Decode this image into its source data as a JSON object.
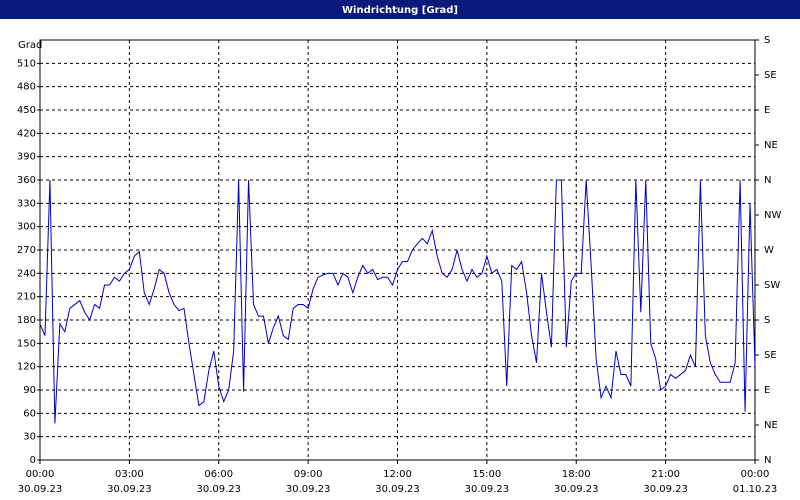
{
  "chart_data": {
    "type": "line",
    "title": "Windrichtung [Grad]",
    "y_label": "Grad",
    "x": [
      0,
      10,
      20,
      30,
      40,
      50,
      60,
      70,
      80,
      90,
      100,
      110,
      120,
      130,
      140,
      150,
      160,
      170,
      180,
      190,
      200,
      210,
      220,
      230,
      240,
      250,
      260,
      270,
      280,
      290,
      300,
      310,
      320,
      330,
      340,
      350,
      360,
      370,
      380,
      390,
      400,
      410,
      420,
      430,
      440,
      450,
      460,
      470,
      480,
      490,
      500,
      510,
      520,
      530,
      540,
      550,
      560,
      570,
      580,
      590,
      600,
      610,
      620,
      630,
      640,
      650,
      660,
      670,
      680,
      690,
      700,
      710,
      720,
      730,
      740,
      750,
      760,
      770,
      780,
      790,
      800,
      810,
      820,
      830,
      840,
      850,
      860,
      870,
      880,
      890,
      900,
      910,
      920,
      930,
      940,
      950,
      960,
      970,
      980,
      990,
      1000,
      1010,
      1020,
      1030,
      1040,
      1050,
      1060,
      1070,
      1080,
      1090,
      1100,
      1110,
      1120,
      1130,
      1140,
      1150,
      1160,
      1170,
      1180,
      1190,
      1200,
      1210,
      1220,
      1230,
      1240,
      1250,
      1260,
      1270,
      1280,
      1290,
      1300,
      1310,
      1320,
      1330,
      1340,
      1350,
      1360,
      1370,
      1380,
      1390,
      1400,
      1410,
      1420,
      1430,
      1440
    ],
    "series": [
      {
        "color": "#0000c8",
        "values": [
          175,
          160,
          360,
          47,
          175,
          165,
          195,
          200,
          205,
          190,
          180,
          200,
          195,
          225,
          225,
          235,
          230,
          240,
          245,
          262,
          268,
          215,
          200,
          220,
          245,
          240,
          215,
          200,
          192,
          195,
          150,
          110,
          70,
          75,
          115,
          140,
          95,
          75,
          90,
          140,
          360,
          88,
          360,
          200,
          185,
          185,
          150,
          170,
          185,
          160,
          155,
          195,
          200,
          200,
          195,
          220,
          235,
          238,
          240,
          240,
          225,
          240,
          235,
          215,
          235,
          250,
          240,
          245,
          232,
          235,
          235,
          225,
          245,
          255,
          255,
          270,
          278,
          285,
          278,
          295,
          262,
          240,
          235,
          245,
          270,
          245,
          230,
          245,
          235,
          240,
          262,
          240,
          245,
          230,
          95,
          250,
          245,
          255,
          215,
          160,
          125,
          240,
          190,
          145,
          360,
          360,
          145,
          230,
          240,
          240,
          360,
          250,
          130,
          80,
          95,
          80,
          140,
          110,
          110,
          95,
          360,
          190,
          360,
          150,
          130,
          90,
          95,
          110,
          105,
          110,
          115,
          135,
          120,
          360,
          160,
          125,
          110,
          100,
          100,
          100,
          125,
          360,
          62,
          330,
          120
        ]
      }
    ],
    "xlim": [
      0,
      1440
    ],
    "xticks": [
      {
        "value": 0,
        "label": "00:00"
      },
      {
        "value": 180,
        "label": "03:00"
      },
      {
        "value": 360,
        "label": "06:00"
      },
      {
        "value": 540,
        "label": "09:00"
      },
      {
        "value": 720,
        "label": "12:00"
      },
      {
        "value": 900,
        "label": "15:00"
      },
      {
        "value": 1080,
        "label": "18:00"
      },
      {
        "value": 1260,
        "label": "21:00"
      },
      {
        "value": 1440,
        "label": "00:00"
      }
    ],
    "xtick_dates": [
      "30.09.23",
      "30.09.23",
      "30.09.23",
      "30.09.23",
      "30.09.23",
      "30.09.23",
      "30.09.23",
      "30.09.23",
      "01.10.23"
    ],
    "ylim": [
      0,
      540
    ],
    "yticks": [
      0,
      30,
      60,
      90,
      120,
      150,
      180,
      210,
      240,
      270,
      300,
      330,
      360,
      390,
      420,
      450,
      480,
      510
    ],
    "y2lim": [
      0,
      540
    ],
    "y2ticks": [
      {
        "value": 0,
        "label": "N"
      },
      {
        "value": 45,
        "label": "NE"
      },
      {
        "value": 90,
        "label": "E"
      },
      {
        "value": 135,
        "label": "SE"
      },
      {
        "value": 180,
        "label": "S"
      },
      {
        "value": 225,
        "label": "SW"
      },
      {
        "value": 270,
        "label": "W"
      },
      {
        "value": 315,
        "label": "NW"
      },
      {
        "value": 360,
        "label": "N"
      },
      {
        "value": 405,
        "label": "NE"
      },
      {
        "value": 450,
        "label": "E"
      },
      {
        "value": 495,
        "label": "SE"
      },
      {
        "value": 540,
        "label": "S"
      }
    ],
    "grid": true
  }
}
